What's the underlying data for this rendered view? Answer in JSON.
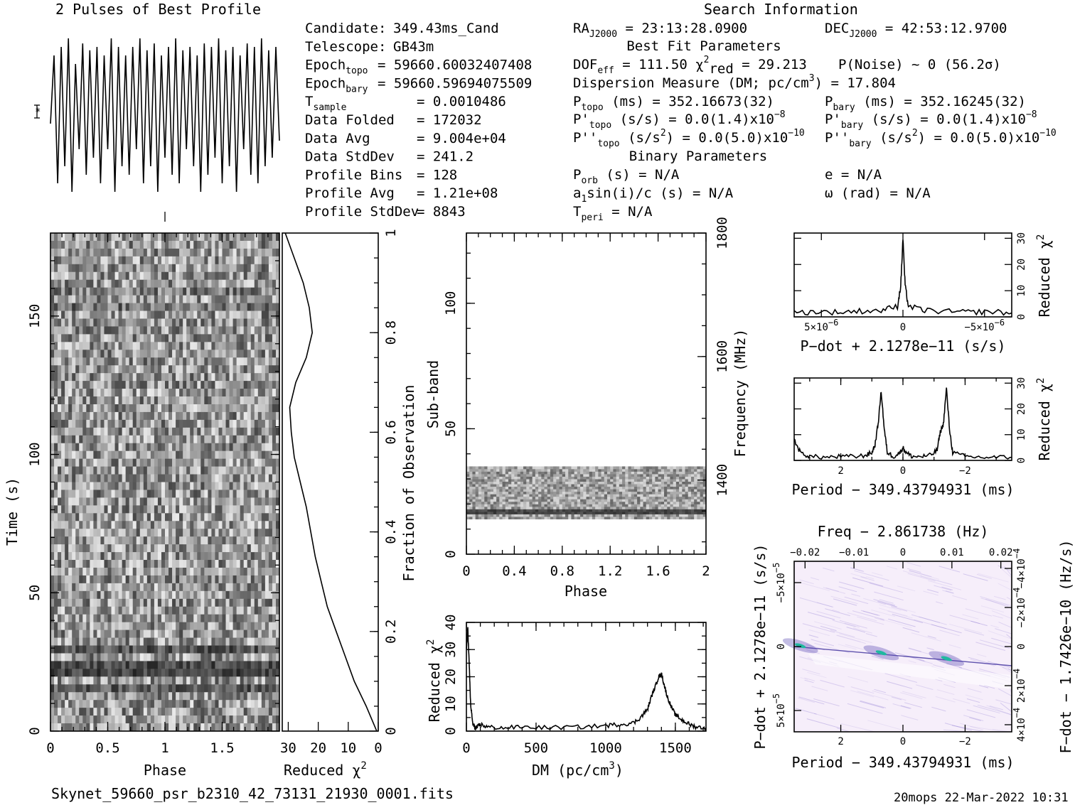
{
  "figure": {
    "left_title": "2 Pulses of Best Profile",
    "right_title": "Search Information",
    "filename": "Skynet_59660_psr_b2310_42_73131_21930_0001.fits",
    "footer_stamp": "20mops  22-Mar-2022 10:31"
  },
  "info_col1": [
    {
      "label": "Candidate:",
      "value": "349.43ms_Cand"
    },
    {
      "label": "Telescope:",
      "value": "GB43m"
    },
    {
      "label": "Epoch",
      "label_sub": "topo",
      "value": "= 59660.60032407408"
    },
    {
      "label": "Epoch",
      "label_sub": "bary",
      "value": "= 59660.59694075509"
    },
    {
      "label": "T",
      "label_sub": "sample",
      "value": "=  0.0010486"
    },
    {
      "label": "Data Folded",
      "value": "=  172032"
    },
    {
      "label": "Data Avg",
      "value": "=  9.004e+04"
    },
    {
      "label": "Data StdDev",
      "value": "=  241.2"
    },
    {
      "label": "Profile Bins",
      "value": "=  128"
    },
    {
      "label": "Profile Avg",
      "value": "=  1.21e+08"
    },
    {
      "label": "Profile StdDev",
      "value": "=  8843"
    }
  ],
  "info_col2": {
    "ra": {
      "label": "RA",
      "sub": "J2000",
      "value": "= 23:13:28.0900"
    },
    "best_fit_header": "Best Fit Parameters",
    "dof": {
      "label": "DOF",
      "sub": "eff",
      "value": "= 111.50"
    },
    "chi2": {
      "label": "χ",
      "sup": "2",
      "sub": "red",
      "value": "= 29.213"
    },
    "pnoise": "P(Noise) ~ 0    (56.2σ)",
    "dm": "Dispersion Measure (DM; pc/cm",
    "dm_sup": "3",
    "dm_value": ") = 17.804",
    "ptopo": {
      "label": "P",
      "sub": "topo",
      "value": "(ms) =  352.16673(32)"
    },
    "pdot_topo": {
      "label": "P'",
      "sub": "topo",
      "value": "(s/s) = 0.0(1.4)x10",
      "exp": "−8"
    },
    "pddot_topo": {
      "label": "P''",
      "sub": "topo",
      "value": "(s/s",
      "sup": "2",
      "value2": ") = 0.0(5.0)x10",
      "exp": "−10"
    },
    "binary_header": "Binary Parameters",
    "porb": {
      "label": "P",
      "sub": "orb",
      "value": "(s) = N/A"
    },
    "a1": {
      "label": "a",
      "sub": "1",
      "value": "sin(i)/c (s) = N/A"
    },
    "tperi": {
      "label": "T",
      "sub": "peri",
      "value": "= N/A"
    }
  },
  "info_col3": {
    "dec": {
      "label": "DEC",
      "sub": "J2000",
      "value": "= 42:53:12.9700"
    },
    "pbary": {
      "label": "P",
      "sub": "bary",
      "value": "(ms) =  352.16245(32)"
    },
    "pdot_bary": {
      "label": "P'",
      "sub": "bary",
      "value": "(s/s) = 0.0(1.4)x10",
      "exp": "−8"
    },
    "pddot_bary": {
      "label": "P''",
      "sub": "bary",
      "value": "(s/s",
      "sup": "2",
      "value2": ") = 0.0(5.0)x10",
      "exp": "−10"
    },
    "ecc": "e = N/A",
    "omega": "ω (rad) = N/A"
  },
  "chart_data": [
    {
      "id": "profile",
      "type": "line",
      "title": "2 Pulses of Best Profile",
      "description_values": "noisy profile over 2 pulses, no labelled axes",
      "x_range": [
        0,
        2
      ],
      "series": [
        {
          "values": [
            0.45,
            0.85,
            0.1,
            0.9,
            0.2,
            0.95,
            0.05,
            0.8,
            0.3,
            0.92,
            0.15,
            0.88,
            0.25,
            0.9,
            0.1,
            0.85,
            0.3,
            0.95,
            0.05,
            0.9,
            0.2,
            0.85,
            0.15,
            0.9,
            0.3,
            0.95,
            0.1,
            0.88,
            0.2,
            0.92,
            0.05,
            0.85,
            0.25,
            0.9,
            0.15,
            0.95,
            0.1,
            0.88,
            0.3,
            0.9,
            0.2,
            0.85,
            0.05,
            0.92,
            0.15,
            0.9,
            0.25,
            0.95,
            0.1,
            0.88,
            0.2,
            0.9,
            0.05,
            0.85,
            0.3,
            0.92,
            0.15,
            0.9,
            0.1,
            0.95,
            0.2,
            0.88,
            0.25,
            0.9,
            0.35
          ]
        }
      ]
    },
    {
      "id": "time_phase",
      "type": "heatmap",
      "xlabel": "Phase",
      "ylabel": "Time (s)",
      "x_ticks": [
        "0",
        "0.5",
        "1",
        "1.5"
      ],
      "y_ticks": [
        "0",
        "50",
        "100",
        "150"
      ],
      "xlim": [
        0,
        2
      ],
      "ylim": [
        0,
        180
      ]
    },
    {
      "id": "time_chi2",
      "type": "line",
      "xlabel": "Reduced χ",
      "xlabel_sup": "2",
      "ylabel": "Fraction of Observation",
      "x_ticks": [
        "30",
        "20",
        "10",
        "0"
      ],
      "y_ticks": [
        "0",
        "0.2",
        "0.4",
        "0.6",
        "0.8",
        "1"
      ],
      "xlim": [
        32,
        0
      ],
      "ylim": [
        0,
        1
      ],
      "series": [
        {
          "y": [
            0,
            0.05,
            0.1,
            0.15,
            0.2,
            0.25,
            0.3,
            0.35,
            0.4,
            0.45,
            0.5,
            0.55,
            0.6,
            0.65,
            0.7,
            0.75,
            0.8,
            0.85,
            0.9,
            0.95,
            1.0
          ],
          "x": [
            0.5,
            4,
            8,
            11,
            14,
            17,
            19,
            21,
            22.5,
            24,
            26,
            28,
            29,
            29.5,
            27.5,
            24,
            22,
            23,
            25,
            28,
            31
          ]
        }
      ]
    },
    {
      "id": "subband_phase",
      "type": "heatmap",
      "xlabel": "Phase",
      "ylabel": "Sub-band",
      "y2label": "Frequency (MHz)",
      "x_ticks": [
        "0",
        "0.4",
        "0.8",
        "1.2",
        "1.6",
        "2"
      ],
      "y_ticks": [
        "0",
        "50",
        "100"
      ],
      "y2_ticks": [
        "1400",
        "1600",
        "1800"
      ],
      "xlim": [
        0,
        2
      ],
      "ylim": [
        0,
        128
      ],
      "y2lim": [
        1280,
        1800
      ],
      "band_range": [
        14,
        35
      ]
    },
    {
      "id": "dm_chi2",
      "type": "line",
      "xlabel": "DM (pc/cm",
      "xlabel_sup": "3",
      "xlabel_end": ")",
      "ylabel": "Reduced χ",
      "ylabel_sup": "2",
      "x_ticks": [
        "0",
        "500",
        "1000",
        "1500"
      ],
      "y_ticks": [
        "0",
        "10",
        "20",
        "30",
        "40"
      ],
      "xlim": [
        0,
        1720
      ],
      "ylim": [
        0,
        40
      ],
      "series": [
        {
          "x": [
            0,
            10,
            20,
            30,
            45,
            60,
            80,
            100,
            150,
            250,
            400,
            600,
            800,
            1000,
            1100,
            1200,
            1250,
            1300,
            1330,
            1360,
            1380,
            1400,
            1420,
            1440,
            1470,
            1500,
            1550,
            1600,
            1650,
            1720
          ],
          "y": [
            30,
            38,
            25,
            10,
            3,
            1,
            1.5,
            2.5,
            1.5,
            1.2,
            1.5,
            1.3,
            1.5,
            2,
            2.5,
            3,
            5,
            8,
            13,
            17,
            20,
            21,
            17,
            13,
            9,
            6,
            4,
            2.5,
            1.5,
            1.2
          ]
        }
      ]
    },
    {
      "id": "pdot_chi2",
      "type": "line",
      "xlabel": "P−dot + 2.1278e−11 (s/s)",
      "ylabel": "Reduced χ",
      "ylabel_sup": "2",
      "x_ticks": [
        "5×10",
        "0",
        "−5×10"
      ],
      "x_tick_exp": "−6",
      "y_ticks": [
        "0",
        "10",
        "20",
        "30"
      ],
      "ylim": [
        0,
        32
      ],
      "series": [
        {
          "x": [
            -1,
            -0.8,
            -0.6,
            -0.4,
            -0.2,
            -0.05,
            -0.02,
            0,
            0.02,
            0.05,
            0.2,
            0.4,
            0.6,
            0.8,
            1
          ],
          "y": [
            1.5,
            2,
            1.8,
            2.2,
            2.5,
            4,
            12,
            30,
            12,
            4,
            2.5,
            2,
            1.8,
            2,
            1.5
          ]
        }
      ]
    },
    {
      "id": "period_chi2",
      "type": "line",
      "xlabel": "Period − 349.43794931 (ms)",
      "ylabel": "Reduced χ",
      "ylabel_sup": "2",
      "x_ticks": [
        "2",
        "0",
        "−2"
      ],
      "y_ticks": [
        "0",
        "10",
        "20",
        "30"
      ],
      "xlim": [
        3.5,
        -3.5
      ],
      "ylim": [
        0,
        32
      ],
      "series": [
        {
          "x": [
            3.5,
            3.3,
            3.0,
            2.5,
            2.0,
            1.5,
            1.2,
            1.0,
            0.9,
            0.8,
            0.7,
            0.6,
            0.5,
            0.3,
            0.1,
            0,
            -0.1,
            -0.3,
            -0.6,
            -0.9,
            -1.1,
            -1.2,
            -1.3,
            -1.4,
            -1.5,
            -1.6,
            -2.0,
            -2.5,
            -3.0,
            -3.5
          ],
          "y": [
            8,
            3,
            1.5,
            1.2,
            1.5,
            1.5,
            2,
            3,
            6,
            14,
            27,
            12,
            3,
            1.5,
            3,
            5,
            3,
            1.5,
            1.5,
            2,
            4,
            11,
            14,
            28,
            12,
            3,
            1.5,
            1.2,
            1.2,
            1.2
          ]
        }
      ]
    },
    {
      "id": "p_pdot_plane",
      "type": "heatmap",
      "title": "Freq − 2.861738 (Hz)",
      "xlabel": "Period − 349.43794931 (ms)",
      "ylabel": "P−dot + 2.1278e−11 (s/s)",
      "y2label": "F−dot − 1.7426e−10 (Hz/s)",
      "x_ticks": [
        "2",
        "0",
        "−2"
      ],
      "x2_ticks": [
        "−0.02",
        "−0.01",
        "0",
        "0.01",
        "0.02"
      ],
      "y_ticks": [
        "−5×10",
        "0",
        "5×10"
      ],
      "y_tick_exp": "−5",
      "y2_ticks": [
        "−4×10",
        "−2×10",
        "0",
        "2×10",
        "4×10"
      ],
      "y2_tick_exp": "−4",
      "peaks": [
        {
          "x": 3.3,
          "y": 0
        },
        {
          "x": 0.7,
          "y": 0
        },
        {
          "x": -1.4,
          "y": 0
        }
      ]
    }
  ],
  "colors": {
    "axes": "#000000",
    "map_bg": "#f6eefa",
    "map_ink": "#7058c8",
    "map_peak": "#20b8a0"
  }
}
